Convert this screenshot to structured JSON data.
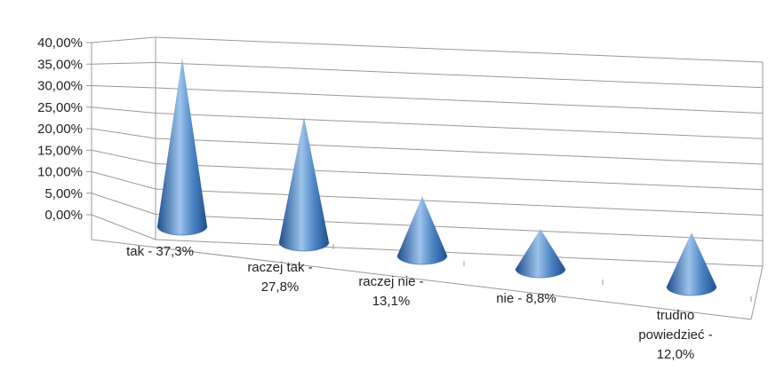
{
  "chart_data": {
    "type": "bar",
    "style": "3d-cone",
    "categories": [
      [
        "tak - 37,3%"
      ],
      [
        "raczej tak -",
        "27,8%"
      ],
      [
        "raczej nie -",
        "13,1%"
      ],
      [
        "nie - 8,8%"
      ],
      [
        "trudno",
        "powiedzieć -",
        "12,0%"
      ]
    ],
    "values": [
      37.3,
      27.8,
      13.1,
      8.8,
      12.0
    ],
    "y_ticks": [
      "0,00%",
      "5,00%",
      "10,00%",
      "15,00%",
      "20,00%",
      "25,00%",
      "30,00%",
      "35,00%",
      "40,00%"
    ],
    "ylim": [
      0,
      40
    ],
    "grid": true,
    "legend": "none",
    "colors": {
      "cone_light": "#9cc3ea",
      "cone_mid": "#4f86c6",
      "cone_dark": "#1f4f8e",
      "grid": "#999999"
    }
  }
}
